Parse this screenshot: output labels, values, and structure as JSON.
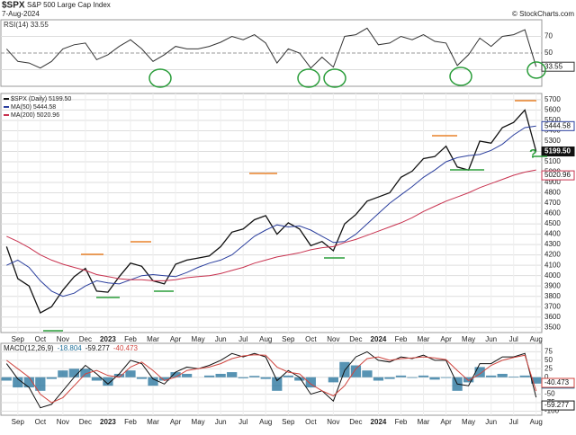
{
  "header": {
    "symbol": "$SPX",
    "name": "S&P 500 Large Cap Index",
    "date": "7-Aug-2024",
    "source": "© StockCharts.com"
  },
  "chart_data": [
    {
      "type": "line",
      "grid": true,
      "ylim": [
        10,
        90
      ],
      "yticks": [
        30,
        50,
        70
      ],
      "series": [
        {
          "name": "RSI(14) 33.55",
          "color": "#333333",
          "style": "line",
          "last_value_label": "33.55",
          "values": [
            55,
            40,
            38,
            32,
            40,
            55,
            60,
            62,
            42,
            48,
            58,
            66,
            55,
            40,
            48,
            58,
            55,
            55,
            58,
            63,
            70,
            66,
            72,
            62,
            38,
            55,
            50,
            32,
            45,
            33,
            70,
            72,
            80,
            60,
            62,
            70,
            66,
            72,
            64,
            62,
            35,
            48,
            68,
            58,
            70,
            72,
            78,
            33.55
          ]
        }
      ]
    },
    {
      "type": "line",
      "grid": true,
      "ylim": [
        3450,
        5760
      ],
      "yticks": [
        3500,
        3600,
        3700,
        3800,
        3900,
        4000,
        4100,
        4200,
        4300,
        4400,
        4500,
        4600,
        4700,
        4800,
        4900,
        5000,
        5100,
        5200,
        5300,
        5400,
        5500,
        5600,
        5700
      ],
      "categories": [
        null,
        "Sep",
        null,
        "Oct",
        null,
        "Nov",
        null,
        "Dec",
        null,
        "2023",
        null,
        "Feb",
        null,
        "Mar",
        null,
        "Apr",
        null,
        "May",
        null,
        "Jun",
        null,
        "Jul",
        null,
        "Aug",
        null,
        "Sep",
        null,
        "Oct",
        null,
        "Nov",
        null,
        "Dec",
        null,
        "2024",
        null,
        "Feb",
        null,
        "Mar",
        null,
        "Apr",
        null,
        "May",
        null,
        "Jun",
        null,
        "Jul",
        null,
        "Aug"
      ],
      "annotations": [
        {
          "text": "?",
          "color": "#2a9d3a"
        }
      ],
      "series": [
        {
          "name": "$SPX (Daily) 5199.50",
          "color": "#111111",
          "style": "line",
          "last_value_label": "5199.50",
          "values": [
            4280,
            3970,
            3900,
            3640,
            3700,
            3860,
            3990,
            4070,
            3850,
            3840,
            3990,
            4120,
            4090,
            3950,
            3920,
            4110,
            4150,
            4170,
            4190,
            4280,
            4420,
            4450,
            4540,
            4580,
            4400,
            4510,
            4450,
            4290,
            4330,
            4240,
            4500,
            4590,
            4720,
            4760,
            4800,
            4950,
            5010,
            5130,
            5150,
            5250,
            5050,
            5020,
            5300,
            5280,
            5430,
            5480,
            5600,
            5199.5
          ]
        },
        {
          "name": "MA(50) 5444.58",
          "color": "#2b3f9e",
          "style": "line",
          "last_value_label": "5444.58",
          "values": [
            4100,
            4150,
            4080,
            3950,
            3850,
            3800,
            3830,
            3900,
            3950,
            3930,
            3920,
            3960,
            4000,
            4010,
            4000,
            3990,
            4030,
            4080,
            4120,
            4150,
            4200,
            4290,
            4380,
            4440,
            4490,
            4470,
            4480,
            4440,
            4380,
            4320,
            4330,
            4400,
            4500,
            4600,
            4700,
            4780,
            4860,
            4950,
            5020,
            5100,
            5140,
            5160,
            5170,
            5210,
            5270,
            5360,
            5430,
            5444.58
          ]
        },
        {
          "name": "MA(200) 5020.96",
          "color": "#c8324f",
          "style": "line",
          "last_value_label": "5020.96",
          "values": [
            4380,
            4330,
            4270,
            4200,
            4150,
            4110,
            4080,
            4050,
            4010,
            3990,
            3970,
            3960,
            3960,
            3950,
            3950,
            3960,
            3980,
            3990,
            4000,
            4020,
            4050,
            4080,
            4120,
            4150,
            4180,
            4200,
            4220,
            4250,
            4270,
            4280,
            4320,
            4350,
            4390,
            4430,
            4470,
            4510,
            4560,
            4620,
            4670,
            4720,
            4760,
            4800,
            4850,
            4890,
            4930,
            4970,
            5000,
            5020.96
          ]
        }
      ]
    },
    {
      "type": "line",
      "grid": true,
      "title": "MACD(12,26,9)",
      "ylim": [
        -112,
        100
      ],
      "yticks": [
        75,
        50,
        25,
        0,
        -25,
        -50,
        -75,
        -100
      ],
      "categories": [
        null,
        "Sep",
        null,
        "Oct",
        null,
        "Nov",
        null,
        "Dec",
        null,
        "2023",
        null,
        "Feb",
        null,
        "Mar",
        null,
        "Apr",
        null,
        "May",
        null,
        "Jun",
        null,
        "Jul",
        null,
        "Aug",
        null,
        "Sep",
        null,
        "Oct",
        null,
        "Nov",
        null,
        "Dec",
        null,
        "2024",
        null,
        "Feb",
        null,
        "Mar",
        null,
        "Apr",
        null,
        "May",
        null,
        "Jun",
        null,
        "Jul",
        null,
        "Aug"
      ],
      "series": [
        {
          "name": "-18.804",
          "color": "#1f6f99",
          "style": "bar",
          "last_value_label": "-18.804",
          "values": [
            -10,
            -30,
            -30,
            -40,
            -5,
            20,
            25,
            25,
            -10,
            -25,
            10,
            20,
            -5,
            -25,
            -10,
            15,
            10,
            0,
            5,
            10,
            15,
            -3,
            4,
            -5,
            -40,
            5,
            -10,
            -30,
            0,
            -15,
            45,
            35,
            20,
            -10,
            -5,
            5,
            -2,
            5,
            -7,
            -2,
            -40,
            -15,
            30,
            5,
            10,
            2,
            5,
            -18.804
          ]
        },
        {
          "name": "-59.277",
          "color": "#111111",
          "style": "line",
          "last_value_label": "-59.277",
          "values": [
            40,
            -5,
            -30,
            -90,
            -80,
            -40,
            0,
            35,
            10,
            -20,
            10,
            50,
            40,
            -5,
            -20,
            15,
            30,
            25,
            35,
            50,
            70,
            60,
            70,
            60,
            -10,
            20,
            0,
            -50,
            -40,
            -70,
            20,
            60,
            75,
            50,
            45,
            60,
            55,
            65,
            50,
            50,
            -20,
            -25,
            40,
            40,
            60,
            60,
            70,
            -59.277
          ]
        },
        {
          "name": "-40.473",
          "color": "#d0453f",
          "style": "line",
          "last_value_label": "-40.473",
          "values": [
            50,
            25,
            0,
            -50,
            -75,
            -60,
            -25,
            10,
            20,
            5,
            0,
            30,
            45,
            20,
            -10,
            0,
            20,
            25,
            30,
            40,
            55,
            63,
            66,
            65,
            30,
            15,
            10,
            -20,
            -40,
            -55,
            -25,
            25,
            55,
            60,
            50,
            55,
            57,
            60,
            57,
            52,
            20,
            -10,
            10,
            35,
            50,
            58,
            65,
            -40.473
          ]
        }
      ]
    }
  ]
}
